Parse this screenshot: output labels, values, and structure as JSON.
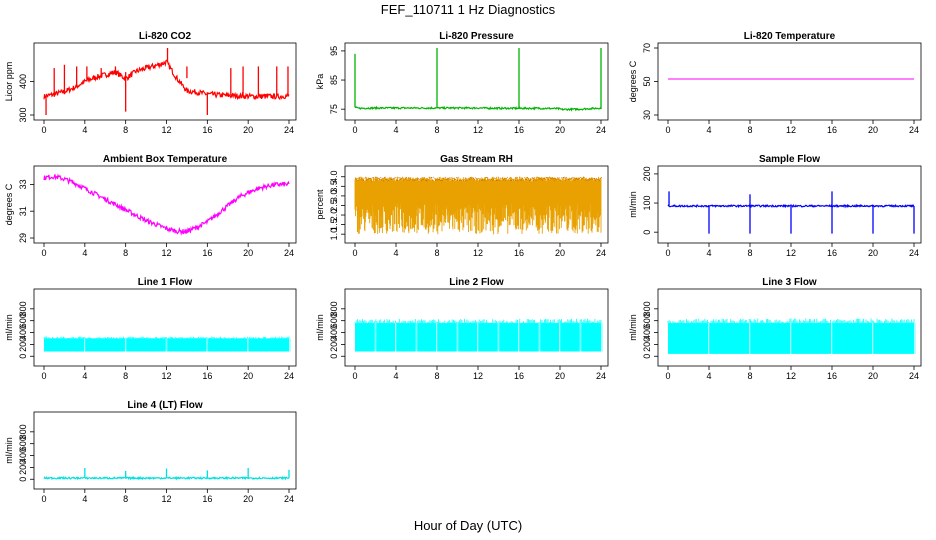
{
  "figure": {
    "title": "FEF_110711  1 Hz Diagnostics",
    "xcaption": "Hour of Day (UTC)"
  },
  "chart_data": [
    {
      "type": "line",
      "title": "Li-820 CO2",
      "ylabel": "Licor ppm",
      "color": "#ff0000",
      "xlim": [
        0,
        24
      ],
      "ylim": [
        300,
        500
      ],
      "yticks": [
        300,
        400
      ],
      "xticks": [
        0,
        4,
        8,
        12,
        16,
        20,
        24
      ],
      "x": [
        0,
        1,
        2,
        3,
        4,
        5,
        6,
        7,
        8,
        9,
        10,
        11,
        12,
        13,
        14,
        15,
        16,
        17,
        18,
        19,
        20,
        21,
        22,
        23,
        24
      ],
      "values": [
        355,
        362,
        370,
        382,
        400,
        412,
        420,
        428,
        408,
        430,
        440,
        448,
        458,
        410,
        372,
        368,
        362,
        360,
        358,
        357,
        356,
        355,
        356,
        355,
        358
      ],
      "spikes": [
        {
          "x": 0.2,
          "y": 300
        },
        {
          "x": 1.0,
          "y": 440
        },
        {
          "x": 2.0,
          "y": 450
        },
        {
          "x": 3.2,
          "y": 445
        },
        {
          "x": 4.2,
          "y": 445
        },
        {
          "x": 5.6,
          "y": 440
        },
        {
          "x": 7.0,
          "y": 445
        },
        {
          "x": 8.0,
          "y": 310
        },
        {
          "x": 12.1,
          "y": 500
        },
        {
          "x": 14.0,
          "y": 445
        },
        {
          "x": 16.0,
          "y": 300
        },
        {
          "x": 18.3,
          "y": 440
        },
        {
          "x": 19.5,
          "y": 445
        },
        {
          "x": 21.0,
          "y": 445
        },
        {
          "x": 22.8,
          "y": 445
        },
        {
          "x": 23.9,
          "y": 445
        }
      ]
    },
    {
      "type": "line",
      "title": "Li-820 Pressure",
      "ylabel": "kPa",
      "color": "#00b400",
      "xlim": [
        0,
        24
      ],
      "ylim": [
        73,
        96
      ],
      "yticks": [
        75,
        85,
        95
      ],
      "xticks": [
        0,
        4,
        8,
        12,
        16,
        20,
        24
      ],
      "x": [
        0,
        0.3,
        2,
        4,
        6,
        8,
        10,
        12,
        14,
        16,
        18,
        19.8,
        20.2,
        22,
        24
      ],
      "values": [
        75.6,
        75.3,
        75.4,
        75.4,
        75.4,
        75.4,
        75.4,
        75.4,
        75.3,
        75.3,
        75.3,
        75.2,
        74.9,
        75.0,
        75.4
      ],
      "spikes": [
        {
          "x": 0.0,
          "y": 94
        },
        {
          "x": 8.0,
          "y": 96
        },
        {
          "x": 16.0,
          "y": 96
        },
        {
          "x": 24.0,
          "y": 96
        }
      ]
    },
    {
      "type": "line",
      "title": "Li-820 Temperature",
      "ylabel": "degrees C",
      "color": "#ff00ff",
      "xlim": [
        0,
        24
      ],
      "ylim": [
        30,
        70
      ],
      "yticks": [
        30,
        50,
        70
      ],
      "xticks": [
        0,
        4,
        8,
        12,
        16,
        20,
        24
      ],
      "x": [
        0,
        24
      ],
      "values": [
        51.5,
        51.5
      ]
    },
    {
      "type": "line",
      "title": "Ambient Box Temperature",
      "ylabel": "degrees C",
      "color": "#ff00ff",
      "xlim": [
        0,
        24
      ],
      "ylim": [
        29,
        34
      ],
      "yticks": [
        29,
        31,
        33
      ],
      "xticks": [
        0,
        4,
        8,
        12,
        16,
        20,
        24
      ],
      "x": [
        0,
        1,
        2,
        3,
        4,
        5,
        6,
        7,
        8,
        9,
        10,
        11,
        12,
        13,
        14,
        15,
        16,
        17,
        18,
        19,
        20,
        21,
        22,
        23,
        24
      ],
      "values": [
        33.5,
        33.6,
        33.4,
        33.1,
        32.7,
        32.3,
        31.9,
        31.5,
        31.1,
        30.7,
        30.3,
        30.0,
        29.7,
        29.5,
        29.5,
        29.8,
        30.2,
        30.8,
        31.4,
        32.0,
        32.4,
        32.7,
        32.9,
        33.0,
        33.0
      ]
    },
    {
      "type": "area",
      "title": "Gas Stream RH",
      "ylabel": "percent",
      "color": "#e8a100",
      "xlim": [
        0,
        24
      ],
      "ylim": [
        0.8,
        4.3
      ],
      "yticks": [
        1.0,
        1.5,
        2.0,
        2.5,
        3.0,
        3.5,
        4.0
      ],
      "xticks": [
        0,
        4,
        8,
        12,
        16,
        20,
        24
      ],
      "band": [
        1.0,
        4.0
      ]
    },
    {
      "type": "line",
      "title": "Sample Flow",
      "ylabel": "ml/min",
      "color": "#0000ff",
      "xlim": [
        0,
        24
      ],
      "ylim": [
        -20,
        210
      ],
      "yticks": [
        0,
        100,
        200
      ],
      "xticks": [
        0,
        4,
        8,
        12,
        16,
        20,
        24
      ],
      "x": [
        0,
        24
      ],
      "values": [
        90,
        90
      ],
      "spikes": [
        {
          "x": 0.1,
          "y": 140
        },
        {
          "x": 4.0,
          "y": -5
        },
        {
          "x": 8.0,
          "y": 130
        },
        {
          "x": 8.0,
          "y": -5
        },
        {
          "x": 12.0,
          "y": -5
        },
        {
          "x": 16.0,
          "y": 140
        },
        {
          "x": 16.0,
          "y": -5
        },
        {
          "x": 20.0,
          "y": -5
        },
        {
          "x": 24.0,
          "y": -5
        }
      ]
    },
    {
      "type": "area",
      "title": "Line 1 Flow",
      "ylabel": "ml/min",
      "color": "#00ffff",
      "xlim": [
        0,
        24
      ],
      "ylim": [
        -80,
        1050
      ],
      "yticks": [
        0,
        200,
        400,
        600,
        800
      ],
      "xticks": [
        0,
        4,
        8,
        12,
        16,
        20,
        24
      ],
      "band": [
        80,
        300
      ],
      "gaps": [
        4,
        8,
        12,
        16,
        20
      ]
    },
    {
      "type": "area",
      "title": "Line 2 Flow",
      "ylabel": "ml/min",
      "color": "#00ffff",
      "xlim": [
        0,
        24
      ],
      "ylim": [
        -80,
        1050
      ],
      "yticks": [
        0,
        200,
        400,
        600,
        800
      ],
      "xticks": [
        0,
        4,
        8,
        12,
        16,
        20,
        24
      ],
      "band": [
        80,
        560
      ],
      "gaps": [
        2,
        4,
        6,
        8,
        10,
        12,
        14,
        16,
        18,
        20,
        22
      ]
    },
    {
      "type": "area",
      "title": "Line 3 Flow",
      "ylabel": "ml/min",
      "color": "#00ffff",
      "xlim": [
        0,
        24
      ],
      "ylim": [
        -80,
        1050
      ],
      "yticks": [
        0,
        200,
        400,
        600,
        800
      ],
      "xticks": [
        0,
        4,
        8,
        12,
        16,
        20,
        24
      ],
      "band": [
        40,
        560
      ],
      "gaps": [
        4,
        8,
        12,
        16,
        20
      ]
    },
    {
      "type": "line",
      "title": "Line 4 (LT) Flow",
      "ylabel": "ml/min",
      "color": "#00e0e0",
      "xlim": [
        0,
        24
      ],
      "ylim": [
        -80,
        1050
      ],
      "yticks": [
        0,
        200,
        400,
        600,
        800
      ],
      "xticks": [
        0,
        4,
        8,
        12,
        16,
        20,
        24
      ],
      "x": [
        0,
        24
      ],
      "values": [
        20,
        20
      ],
      "spikes": [
        {
          "x": 4.0,
          "y": 190
        },
        {
          "x": 8.0,
          "y": 140
        },
        {
          "x": 12.0,
          "y": 180
        },
        {
          "x": 16.0,
          "y": 150
        },
        {
          "x": 20.0,
          "y": 190
        },
        {
          "x": 24.0,
          "y": 160
        }
      ]
    }
  ]
}
